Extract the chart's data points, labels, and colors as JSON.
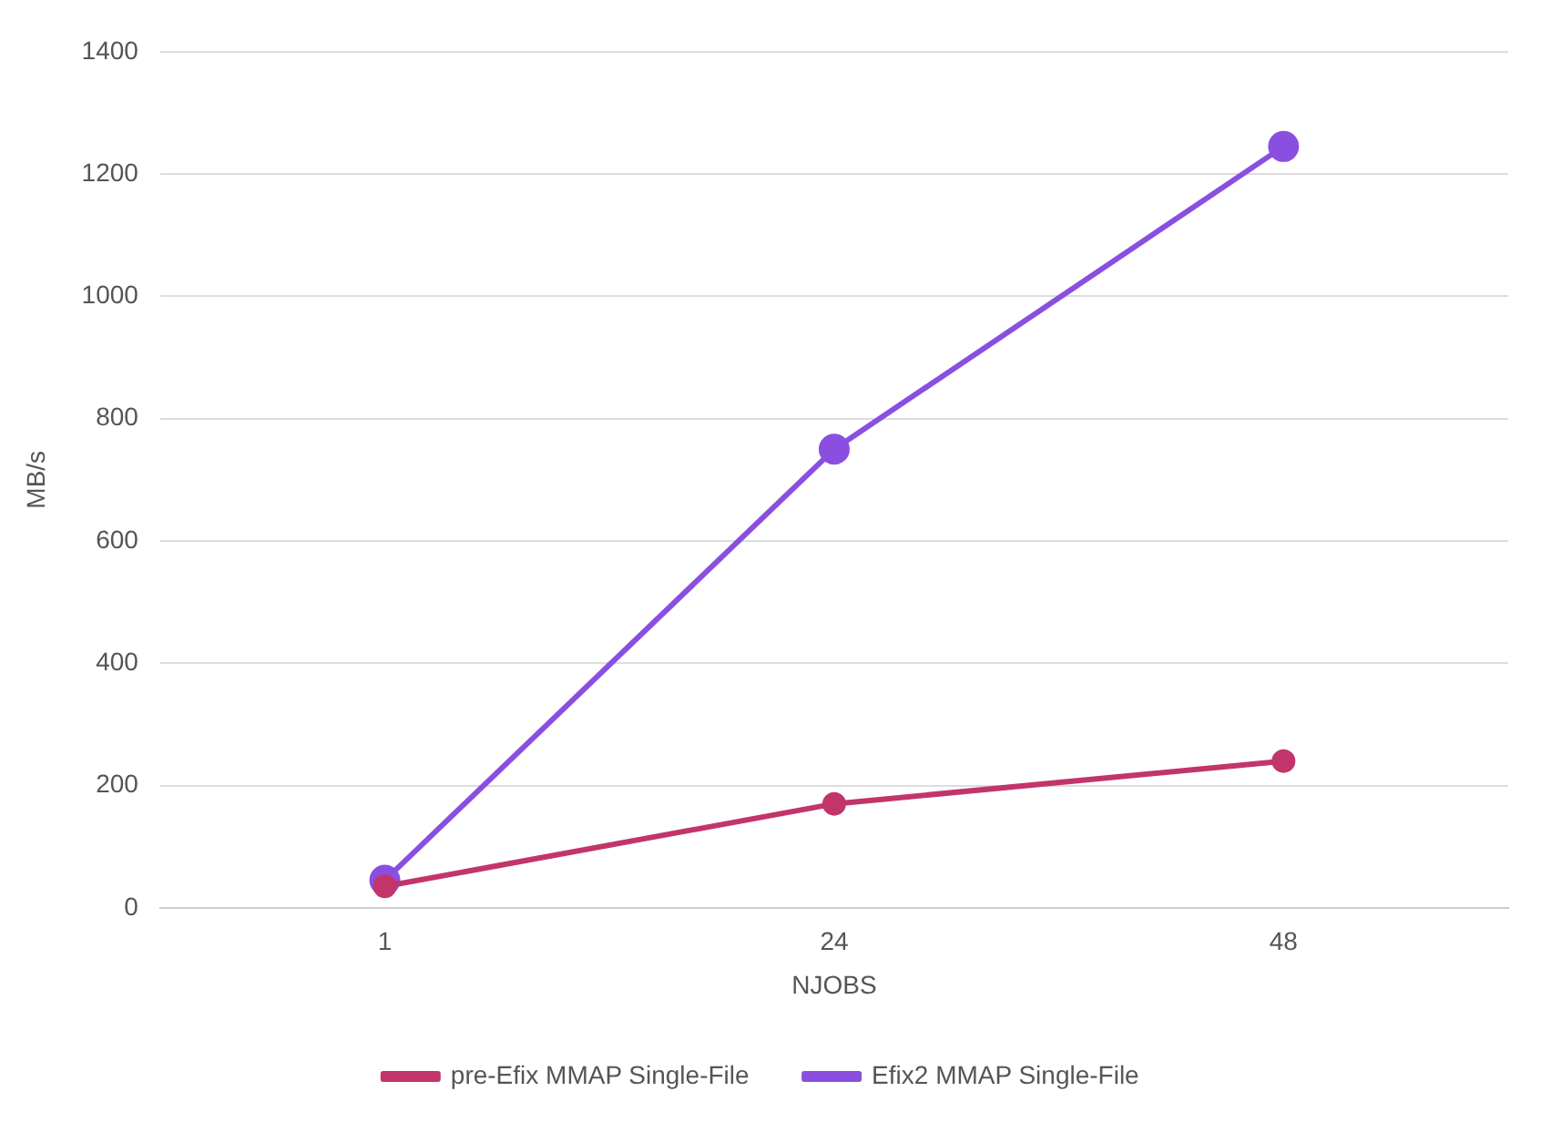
{
  "chart_data": {
    "type": "line",
    "xlabel": "NJOBS",
    "ylabel": "MB/s",
    "categories": [
      "1",
      "24",
      "48"
    ],
    "series": [
      {
        "name": "pre-Efix MMAP Single-File",
        "color": "#c2356b",
        "values": [
          35,
          170,
          240
        ]
      },
      {
        "name": "Efix2 MMAP Single-File",
        "color": "#8a4fe0",
        "values": [
          45,
          750,
          1245
        ]
      }
    ],
    "ylim": [
      0,
      1400
    ],
    "yticks": [
      0,
      200,
      400,
      600,
      800,
      1000,
      1200,
      1400
    ],
    "grid": "y",
    "legend": "bottom",
    "marker": "circle",
    "line_style": "solid"
  }
}
